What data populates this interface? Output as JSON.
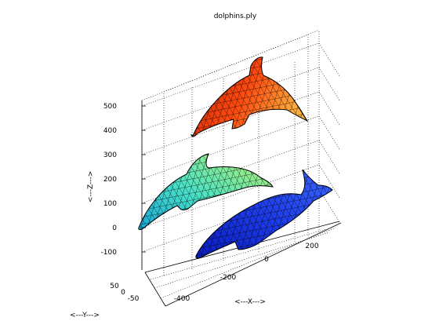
{
  "chart_data": {
    "type": "3d-surface-mesh",
    "title": "dolphins.ply",
    "xlabel": "<---X--->",
    "ylabel": "<---Y--->",
    "zlabel": "<---Z--->",
    "x_ticks": [
      -400,
      -200,
      0,
      200
    ],
    "y_ticks": [
      50,
      0,
      -50
    ],
    "z_ticks": [
      -100,
      0,
      100,
      200,
      300,
      400,
      500
    ],
    "grid": true,
    "colormap": "jet",
    "meshes": [
      {
        "name": "",
        "colors": [
          "#b81c00",
          "#ff4a10",
          "#ffae3c"
        ]
      },
      {
        "name": "",
        "colors": [
          "#bdf26a",
          "#49e2c6",
          "#1aa6d8"
        ]
      },
      {
        "name": "",
        "colors": [
          "#0a1cbf",
          "#1d3ce8",
          "#3b66ff"
        ]
      }
    ]
  }
}
